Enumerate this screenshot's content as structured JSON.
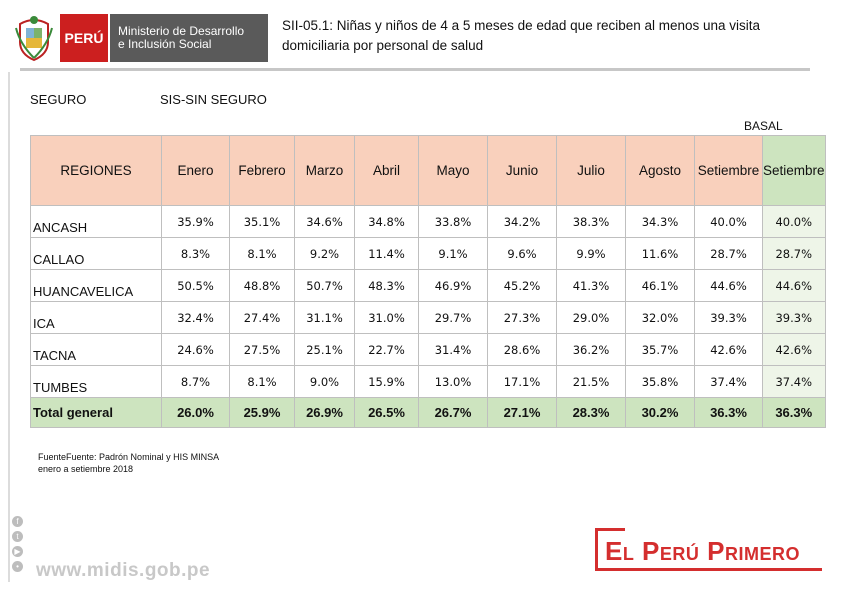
{
  "header": {
    "country": "PERÚ",
    "ministry_line1": "Ministerio de Desarrollo",
    "ministry_line2": "e Inclusión Social",
    "title_line1": "SII-05.1:  Niñas y niños de 4 a 5 meses de edad que reciben al menos una visita",
    "title_line2": "domiciliaria por personal de salud"
  },
  "filters": {
    "seguro_label": "SEGURO",
    "seguro_value": "SIS-SIN SEGURO"
  },
  "basal_label": "BASAL",
  "table": {
    "headers": [
      "REGIONES",
      "Enero",
      "Febrero",
      "Marzo",
      "Abril",
      "Mayo",
      "Junio",
      "Julio",
      "Agosto",
      "Setiembre",
      "Setiembre"
    ],
    "rows": [
      {
        "region": "ANCASH",
        "values": [
          "35.9%",
          "35.1%",
          "34.6%",
          "34.8%",
          "33.8%",
          "34.2%",
          "38.3%",
          "34.3%",
          "40.0%",
          "40.0%"
        ]
      },
      {
        "region": "CALLAO",
        "values": [
          "8.3%",
          "8.1%",
          "9.2%",
          "11.4%",
          "9.1%",
          "9.6%",
          "9.9%",
          "11.6%",
          "28.7%",
          "28.7%"
        ]
      },
      {
        "region": "HUANCAVELICA",
        "values": [
          "50.5%",
          "48.8%",
          "50.7%",
          "48.3%",
          "46.9%",
          "45.2%",
          "41.3%",
          "46.1%",
          "44.6%",
          "44.6%"
        ]
      },
      {
        "region": "ICA",
        "values": [
          "32.4%",
          "27.4%",
          "31.1%",
          "31.0%",
          "29.7%",
          "27.3%",
          "29.0%",
          "32.0%",
          "39.3%",
          "39.3%"
        ]
      },
      {
        "region": "TACNA",
        "values": [
          "24.6%",
          "27.5%",
          "25.1%",
          "22.7%",
          "31.4%",
          "28.6%",
          "36.2%",
          "35.7%",
          "42.6%",
          "42.6%"
        ]
      },
      {
        "region": "TUMBES",
        "values": [
          "8.7%",
          "8.1%",
          "9.0%",
          "15.9%",
          "13.0%",
          "17.1%",
          "21.5%",
          "35.8%",
          "37.4%",
          "37.4%"
        ]
      }
    ],
    "total": {
      "label": "Total general",
      "values": [
        "26.0%",
        "25.9%",
        "26.9%",
        "26.5%",
        "26.7%",
        "27.1%",
        "28.3%",
        "30.2%",
        "36.3%",
        "36.3%"
      ]
    }
  },
  "source_line1": "FuenteFuente:  Padrón Nominal y HIS MINSA",
  "source_line2": "enero a setiembre 2018",
  "footer": {
    "website": "www.midis.gob.pe",
    "brand": "El Perú Primero",
    "social_icons": [
      "facebook-icon",
      "twitter-icon",
      "youtube-icon",
      "flickr-icon"
    ]
  },
  "colors": {
    "header_fill": "#f9d0bc",
    "basal_fill": "#cde4bf",
    "brand_red": "#d42e2e",
    "peru_red": "#cc1f1f"
  }
}
